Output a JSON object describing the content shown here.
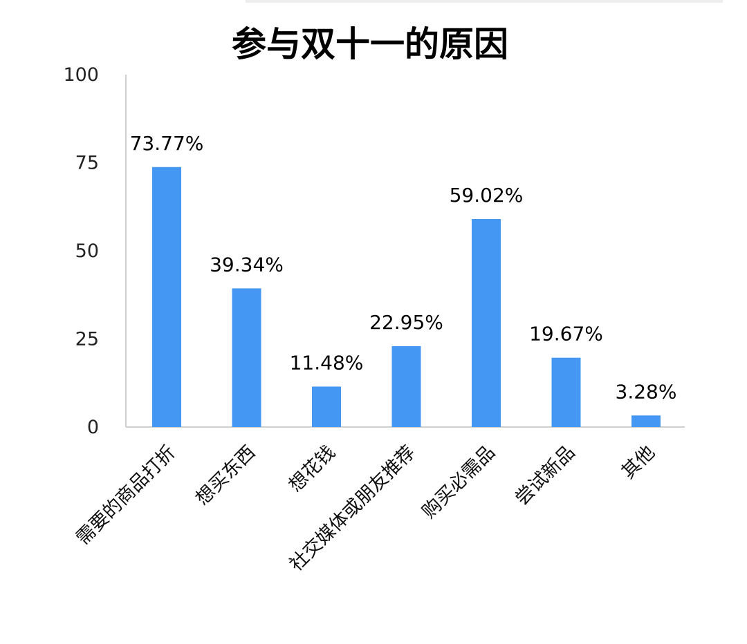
{
  "chart_data": {
    "type": "bar",
    "title": "参与双十一的原因",
    "categories": [
      "需要的商品打折",
      "想买东西",
      "想花钱",
      "社交媒体或朋友推荐",
      "购买必需品",
      "尝试新品",
      "其他"
    ],
    "values": [
      73.77,
      39.34,
      11.48,
      22.95,
      59.02,
      19.67,
      3.28
    ],
    "value_labels": [
      "73.77%",
      "39.34%",
      "11.48%",
      "22.95%",
      "59.02%",
      "19.67%",
      "3.28%"
    ],
    "ylim": [
      0,
      100
    ],
    "yticks": [
      0,
      25,
      50,
      75,
      100
    ],
    "xlabel": "",
    "ylabel": "",
    "grid": false,
    "bar_color": "#4597f4"
  }
}
